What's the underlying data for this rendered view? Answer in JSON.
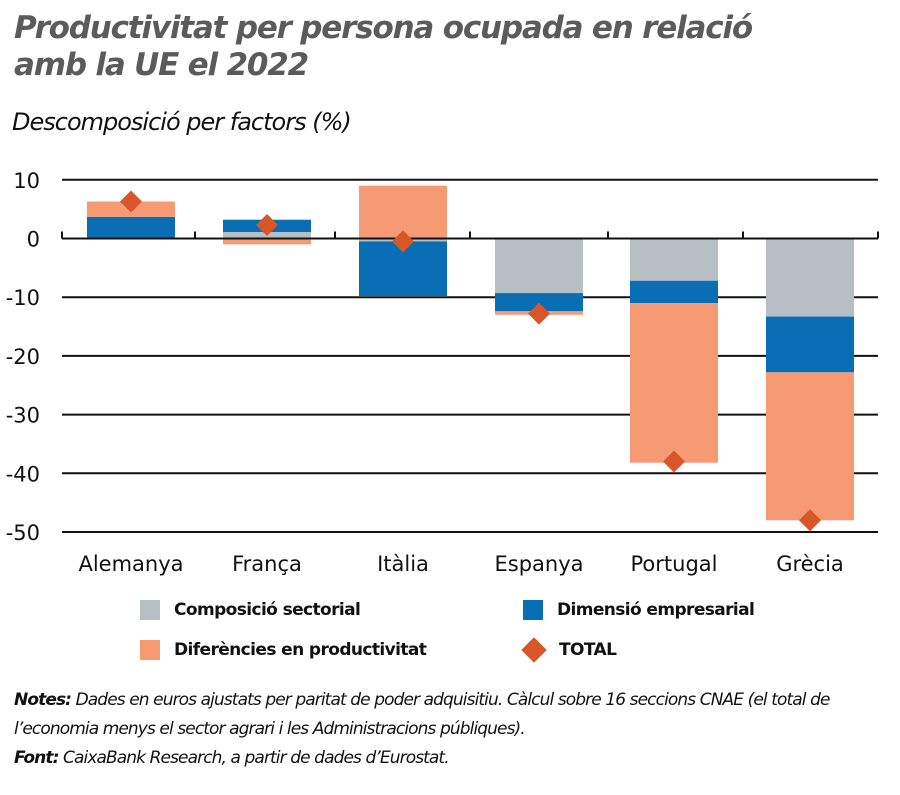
{
  "header": {
    "title_line1": "Productivitat per persona ocupada en relació",
    "title_line2": "amb la UE el 2022",
    "subtitle": "Descomposició per factors (%)"
  },
  "legend": {
    "items": [
      {
        "label": "Composició sectorial",
        "color": "#b5bfc4",
        "shape": "square"
      },
      {
        "label": "Dimensió empresarial",
        "color": "#0a6eb4",
        "shape": "square"
      },
      {
        "label": "Diferències en productivitat",
        "color": "#f59a72",
        "shape": "square"
      },
      {
        "label": "TOTAL",
        "color": "#d9562b",
        "shape": "diamond"
      }
    ]
  },
  "notes": {
    "notes_label": "Notes:",
    "notes_text": " Dades en euros ajustats per paritat de poder adquisitiu. Càlcul sobre 16 seccions CNAE (el total de l’economia menys el sector agrari i les Administracions públiques).",
    "source_label": "Font:",
    "source_text": " CaixaBank Research, a partir de dades d’Eurostat."
  },
  "colors": {
    "sectorial": "#b5bfc4",
    "dimensio": "#0a6eb4",
    "diferencies": "#f59a72",
    "total": "#d9562b",
    "grid": "#111111",
    "title": "#5b5b5b"
  },
  "chart_data": {
    "type": "bar",
    "stacked": true,
    "title": "Productivitat per persona ocupada en relació amb la UE el 2022",
    "subtitle": "Descomposició per factors (%)",
    "xlabel": "",
    "ylabel": "",
    "categories": [
      "Alemanya",
      "França",
      "Itàlia",
      "Espanya",
      "Portugal",
      "Grècia"
    ],
    "yticks": [
      10,
      0,
      -10,
      -20,
      -30,
      -40,
      -50
    ],
    "ylim": [
      -50,
      10
    ],
    "grid": true,
    "legend_position": "bottom",
    "series": [
      {
        "name": "Composició sectorial",
        "type": "bar",
        "values": [
          0.0,
          1.1,
          -0.5,
          -9.3,
          -7.2,
          -13.3
        ]
      },
      {
        "name": "Dimensió empresarial",
        "type": "bar",
        "values": [
          3.7,
          2.1,
          -9.3,
          -3.1,
          -3.8,
          -9.5
        ]
      },
      {
        "name": "Diferències en productivitat",
        "type": "bar",
        "values": [
          2.6,
          -1.0,
          9.0,
          -0.6,
          -27.2,
          -25.2
        ]
      },
      {
        "name": "TOTAL",
        "type": "scatter",
        "marker": "diamond",
        "values": [
          6.3,
          2.3,
          -0.5,
          -12.8,
          -38.0,
          -48.0
        ]
      }
    ]
  }
}
